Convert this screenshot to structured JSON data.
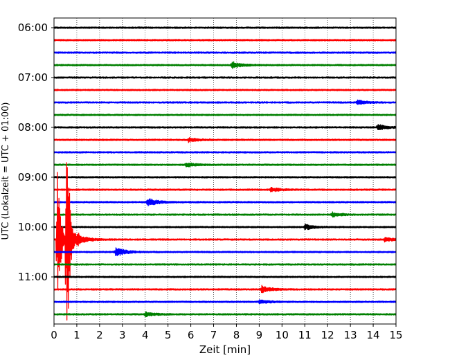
{
  "chart_data": {
    "type": "line",
    "subtype": "helicorder",
    "xlabel": "Zeit  [min]",
    "ylabel": "UTC (Lokalzeit = UTC + 01:00)",
    "xlim": [
      0,
      15
    ],
    "x_ticks": [
      "0",
      "1",
      "2",
      "3",
      "4",
      "5",
      "6",
      "7",
      "8",
      "9",
      "10",
      "11",
      "12",
      "13",
      "14",
      "15"
    ],
    "y_ticks": [
      "06:00",
      "07:00",
      "08:00",
      "09:00",
      "10:00",
      "11:00"
    ],
    "grid": "vertical-dotted",
    "trace_colors": [
      "#000000",
      "#ff0000",
      "#0000ff",
      "#008000"
    ],
    "traces": [
      {
        "start": "06:00",
        "color": "#000000",
        "events": []
      },
      {
        "start": "06:15",
        "color": "#ff0000",
        "events": []
      },
      {
        "start": "06:30",
        "color": "#0000ff",
        "events": []
      },
      {
        "start": "06:45",
        "color": "#008000",
        "events": [
          {
            "t": 7.8,
            "amp": 5
          }
        ]
      },
      {
        "start": "07:00",
        "color": "#000000",
        "events": []
      },
      {
        "start": "07:15",
        "color": "#ff0000",
        "events": []
      },
      {
        "start": "07:30",
        "color": "#0000ff",
        "events": [
          {
            "t": 13.3,
            "amp": 3
          }
        ]
      },
      {
        "start": "07:45",
        "color": "#008000",
        "events": []
      },
      {
        "start": "08:00",
        "color": "#000000",
        "events": [
          {
            "t": 14.2,
            "amp": 4
          }
        ]
      },
      {
        "start": "08:15",
        "color": "#ff0000",
        "events": [
          {
            "t": 5.9,
            "amp": 3
          }
        ]
      },
      {
        "start": "08:30",
        "color": "#0000ff",
        "events": []
      },
      {
        "start": "08:45",
        "color": "#008000",
        "events": [
          {
            "t": 5.8,
            "amp": 3
          }
        ]
      },
      {
        "start": "09:00",
        "color": "#000000",
        "events": []
      },
      {
        "start": "09:15",
        "color": "#ff0000",
        "events": [
          {
            "t": 9.5,
            "amp": 3
          }
        ]
      },
      {
        "start": "09:30",
        "color": "#0000ff",
        "events": [
          {
            "t": 4.1,
            "amp": 6
          }
        ]
      },
      {
        "start": "09:45",
        "color": "#008000",
        "events": [
          {
            "t": 12.2,
            "amp": 3
          }
        ]
      },
      {
        "start": "10:00",
        "color": "#000000",
        "events": [
          {
            "t": 11.0,
            "amp": 4
          }
        ]
      },
      {
        "start": "10:15",
        "color": "#ff0000",
        "events": [
          {
            "t": 0.15,
            "amp": 125
          },
          {
            "t": 0.55,
            "amp": 200
          },
          {
            "t": 1.0,
            "amp": 8
          },
          {
            "t": 14.5,
            "amp": 3
          }
        ]
      },
      {
        "start": "10:30",
        "color": "#0000ff",
        "events": [
          {
            "t": 2.7,
            "amp": 7
          }
        ]
      },
      {
        "start": "10:45",
        "color": "#008000",
        "events": []
      },
      {
        "start": "11:00",
        "color": "#000000",
        "events": []
      },
      {
        "start": "11:15",
        "color": "#ff0000",
        "events": [
          {
            "t": 9.1,
            "amp": 5
          }
        ]
      },
      {
        "start": "11:30",
        "color": "#0000ff",
        "events": [
          {
            "t": 9.0,
            "amp": 3
          }
        ]
      },
      {
        "start": "11:45",
        "color": "#008000",
        "events": [
          {
            "t": 4.0,
            "amp": 3
          }
        ]
      }
    ]
  }
}
